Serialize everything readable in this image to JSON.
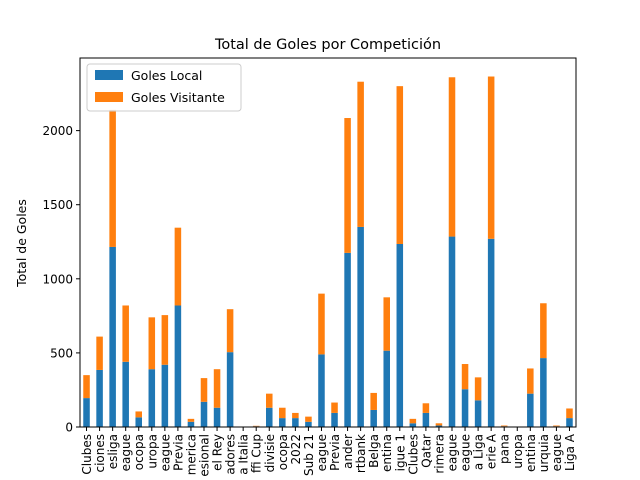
{
  "chart_data": {
    "type": "bar",
    "stacked": true,
    "title": "Total de Goles por Competición",
    "ylabel": "Total de Goles",
    "xlabel": "",
    "ylim": [
      0,
      2490
    ],
    "yticks": [
      0,
      500,
      1000,
      1500,
      2000
    ],
    "legend_position": "top-left",
    "grid": false,
    "categories": [
      "Clubes",
      "ciones",
      "esliga",
      "eague",
      "ocopa",
      "uropa",
      "eague",
      "Previa",
      "merica",
      "esional",
      "el Rey",
      "adores",
      "a Italia",
      "ffi Cup",
      "divisie",
      "ocopa",
      "2022",
      "Sub 21",
      "eague",
      "Previa",
      "ander",
      "rtbank",
      "Belga",
      "entina",
      "igue 1",
      "Clubes",
      "Qatar",
      "rimera",
      "eague",
      "eague",
      "a Liga",
      "erie A",
      "pana",
      "uropa",
      "entina",
      "urquia",
      "eague",
      "Liga A"
    ],
    "series": [
      {
        "name": "Goles Local",
        "color": "#1f77b4",
        "values": [
          195,
          385,
          1215,
          440,
          65,
          390,
          420,
          820,
          35,
          170,
          130,
          505,
          0,
          5,
          130,
          60,
          60,
          35,
          490,
          95,
          1175,
          1350,
          115,
          515,
          1235,
          25,
          95,
          10,
          1285,
          255,
          180,
          1270,
          5,
          0,
          225,
          465,
          5,
          60
        ]
      },
      {
        "name": "Goles Visitante",
        "color": "#ff7f0e",
        "values": [
          155,
          225,
          925,
          380,
          40,
          350,
          335,
          525,
          20,
          160,
          260,
          290,
          0,
          3,
          95,
          70,
          35,
          35,
          410,
          70,
          910,
          980,
          115,
          360,
          1065,
          30,
          65,
          15,
          1075,
          170,
          155,
          1095,
          5,
          0,
          170,
          370,
          5,
          65
        ]
      }
    ]
  }
}
